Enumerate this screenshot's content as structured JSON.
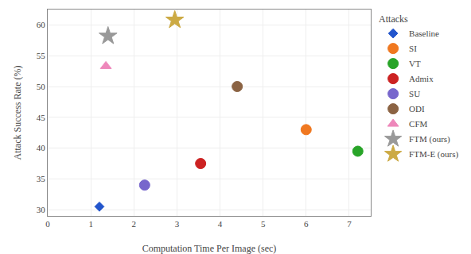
{
  "chart_data": {
    "type": "scatter",
    "xlabel": "Computation Time Per Image (sec)",
    "ylabel": "Attack Success Rate (%)",
    "xlim": [
      0,
      7.5
    ],
    "ylim": [
      29,
      62.5
    ],
    "xticks": [
      0,
      1,
      2,
      3,
      4,
      5,
      6,
      7
    ],
    "yticks": [
      30,
      35,
      40,
      45,
      50,
      55,
      60
    ],
    "grid": true,
    "legend": "right",
    "legend_title": "Attacks",
    "series": [
      {
        "name": "Baseline",
        "color": "#2255cc",
        "marker": "diamond",
        "x": [
          1.2
        ],
        "values": [
          30.5
        ]
      },
      {
        "name": "SI",
        "color": "#f07820",
        "marker": "circle",
        "x": [
          6.0
        ],
        "values": [
          43.0
        ]
      },
      {
        "name": "VT",
        "color": "#28a428",
        "marker": "circle",
        "x": [
          7.2
        ],
        "values": [
          39.5
        ]
      },
      {
        "name": "Admix",
        "color": "#cc2222",
        "marker": "circle",
        "x": [
          3.55
        ],
        "values": [
          37.5
        ]
      },
      {
        "name": "SU",
        "color": "#7766cc",
        "marker": "circle",
        "x": [
          2.25
        ],
        "values": [
          34.0
        ]
      },
      {
        "name": "ODI",
        "color": "#8B6343",
        "marker": "circle",
        "x": [
          4.4
        ],
        "values": [
          50.0
        ]
      },
      {
        "name": "CFM",
        "color": "#ee88bb",
        "marker": "triangle-up",
        "x": [
          1.35
        ],
        "values": [
          53.3
        ]
      },
      {
        "name": "FTM (ours)",
        "color": "#999999",
        "marker": "star",
        "x": [
          1.4
        ],
        "values": [
          58.2
        ]
      },
      {
        "name": "FTM-E (ours)",
        "color": "#ccaa44",
        "marker": "star",
        "x": [
          2.95
        ],
        "values": [
          60.8
        ]
      }
    ]
  }
}
